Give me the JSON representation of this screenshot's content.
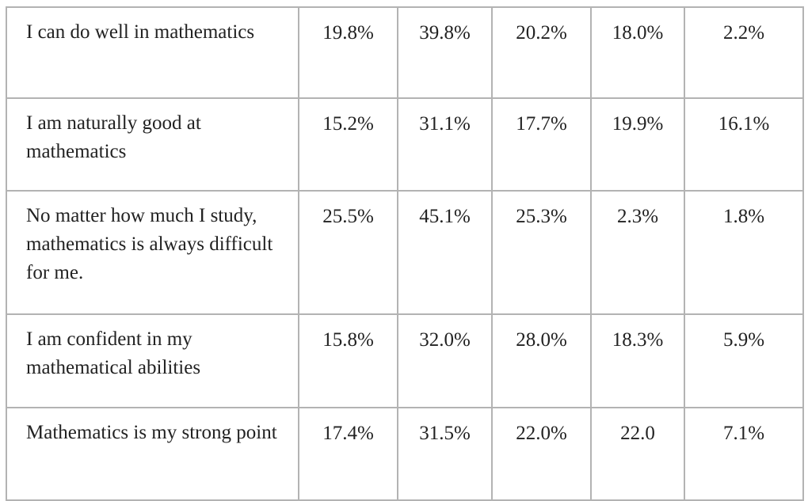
{
  "table": {
    "rows": [
      {
        "statement": "I can do well in mathematics",
        "values": [
          "19.8%",
          "39.8%",
          "20.2%",
          "18.0%",
          "2.2%"
        ]
      },
      {
        "statement": "I am naturally good at mathematics",
        "values": [
          "15.2%",
          "31.1%",
          "17.7%",
          "19.9%",
          "16.1%"
        ]
      },
      {
        "statement": "No matter how much I study, mathematics is always difficult for me.",
        "values": [
          "25.5%",
          "45.1%",
          "25.3%",
          "2.3%",
          "1.8%"
        ]
      },
      {
        "statement": "I am confident in my mathematical abilities",
        "values": [
          "15.8%",
          "32.0%",
          "28.0%",
          "18.3%",
          "5.9%"
        ]
      },
      {
        "statement": "Mathematics is my strong point",
        "values": [
          "17.4%",
          "31.5%",
          "22.0%",
          "22.0",
          "7.1%"
        ]
      }
    ]
  }
}
